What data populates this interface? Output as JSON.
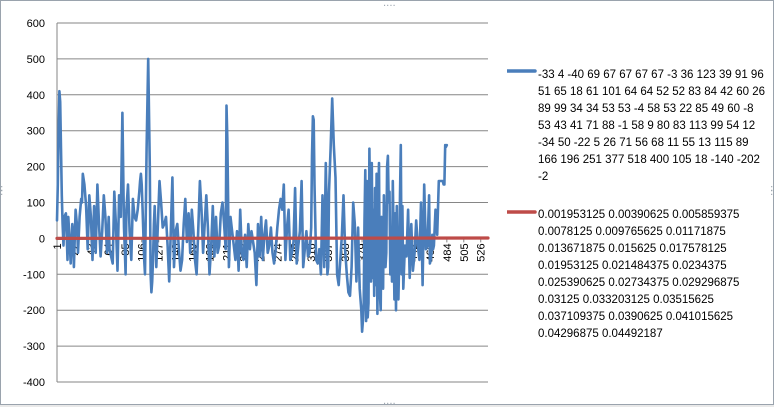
{
  "chart_data": {
    "type": "line",
    "title": "",
    "xlabel": "",
    "ylabel": "",
    "ylim": [
      -400,
      600
    ],
    "y_ticks": [
      "600",
      "500",
      "400",
      "300",
      "200",
      "100",
      "0",
      "-100",
      "-200",
      "-300",
      "-400"
    ],
    "x_range": [
      1,
      535
    ],
    "x_ticks": [
      "1",
      "22",
      "43",
      "64",
      "85",
      "106",
      "127",
      "148",
      "169",
      "190",
      "211",
      "232",
      "253",
      "274",
      "295",
      "316",
      "337",
      "358",
      "379",
      "400",
      "421",
      "442",
      "463",
      "484",
      "505",
      "526"
    ],
    "grid": "horizontal",
    "legend_position": "right",
    "series": [
      {
        "name": "-33 4 -40 69 67 67 67 67 -3 36 123 39 91 96 51 65 18 61 101 64 64 52 52 83 84 42 60 26 89 99 34 34 53 53 -4 58 53 22 85 49 60 -8 53 43 41 71 88 -1 58 9 80 83 113 99 54 12 -34 50 -22 5 26 71 56 68 11 55 13 115 89 166 196 251 377 518 400 105 18 -140 -202 -2",
        "color": "#4a7ebb",
        "x": [
          1,
          2,
          3,
          4,
          5,
          6,
          7,
          8,
          9,
          10,
          12,
          13,
          14,
          15,
          16,
          18,
          20,
          21,
          22,
          24,
          26,
          27,
          29,
          31,
          32,
          33,
          35,
          37,
          38,
          39,
          41,
          43,
          45,
          47,
          49,
          51,
          53,
          55,
          57,
          59,
          61,
          63,
          65,
          66,
          68,
          70,
          72,
          74,
          76,
          78,
          80,
          82,
          84,
          85,
          86,
          87,
          89,
          91,
          93,
          95,
          97,
          99,
          101,
          103,
          104,
          105,
          106,
          107,
          108,
          109,
          110,
          112,
          114,
          116,
          117,
          118,
          119,
          120,
          121,
          122,
          124,
          126,
          128,
          130,
          132,
          134,
          136,
          138,
          140,
          142,
          144,
          146,
          148,
          150,
          152,
          154,
          156,
          158,
          160,
          162,
          164,
          166,
          168,
          170,
          172,
          174,
          176,
          178,
          180,
          182,
          184,
          186,
          188,
          190,
          192,
          194,
          196,
          198,
          200,
          202,
          204,
          206,
          208,
          210,
          211,
          212,
          213,
          214,
          216,
          218,
          220,
          222,
          224,
          226,
          228,
          230,
          232,
          234,
          236,
          238,
          240,
          242,
          244,
          246,
          248,
          250,
          252,
          254,
          256,
          258,
          260,
          262,
          264,
          266,
          268,
          270,
          272,
          274,
          276,
          278,
          280,
          282,
          284,
          286,
          288,
          290,
          292,
          294,
          296,
          298,
          300,
          302,
          304,
          306,
          308,
          310,
          312,
          314,
          316,
          317,
          318,
          319,
          320,
          322,
          324,
          326,
          328,
          330,
          332,
          334,
          335,
          336,
          337,
          338,
          340,
          342,
          344,
          346,
          348,
          350,
          352,
          354,
          356,
          358,
          360,
          362,
          364,
          366,
          368,
          370,
          372,
          374,
          376,
          378,
          379,
          380,
          381,
          382,
          383,
          384,
          385,
          386,
          387,
          388,
          389,
          390,
          391,
          392,
          393,
          394,
          395,
          396,
          397,
          398,
          399,
          400,
          401,
          402,
          403,
          404,
          405,
          406,
          407,
          408,
          409,
          410,
          411,
          412,
          413,
          414,
          415,
          416,
          417,
          418,
          419,
          420,
          421,
          422,
          423,
          424,
          425,
          426,
          427,
          428,
          429,
          430,
          432,
          434,
          436,
          438,
          440,
          442,
          444,
          446,
          448,
          450,
          452,
          454,
          456,
          458,
          460,
          462,
          463,
          464,
          465,
          466,
          467,
          468,
          470,
          472,
          474,
          476,
          478,
          479,
          480,
          481,
          482,
          483,
          484
        ],
        "values": [
          50,
          150,
          300,
          410,
          380,
          250,
          120,
          40,
          -20,
          60,
          70,
          10,
          -60,
          60,
          20,
          -70,
          40,
          10,
          -80,
          80,
          30,
          -40,
          60,
          110,
          100,
          180,
          150,
          90,
          30,
          -30,
          120,
          60,
          -60,
          90,
          -40,
          150,
          40,
          -50,
          20,
          120,
          60,
          -40,
          60,
          -30,
          -50,
          -70,
          130,
          40,
          -90,
          120,
          60,
          350,
          30,
          -30,
          -100,
          80,
          150,
          20,
          -60,
          110,
          60,
          50,
          80,
          130,
          160,
          180,
          150,
          80,
          10,
          -60,
          -100,
          250,
          500,
          200,
          -100,
          -150,
          -120,
          -60,
          40,
          90,
          -80,
          40,
          160,
          100,
          30,
          40,
          60,
          -20,
          -120,
          20,
          170,
          -80,
          20,
          40,
          -30,
          -90,
          -60,
          40,
          110,
          -10,
          70,
          -40,
          80,
          20,
          -60,
          -100,
          20,
          160,
          80,
          -40,
          40,
          120,
          30,
          -100,
          -20,
          90,
          -50,
          60,
          -40,
          -20,
          70,
          100,
          40,
          -30,
          370,
          280,
          110,
          -80,
          60,
          20,
          -20,
          -60,
          20,
          -90,
          80,
          -40,
          -60,
          10,
          -80,
          40,
          -30,
          20,
          -10,
          -40,
          -130,
          40,
          -50,
          60,
          -60,
          10,
          50,
          -40,
          -20,
          30,
          -40,
          -70,
          -30,
          30,
          80,
          110,
          80,
          150,
          -60,
          30,
          80,
          -60,
          -40,
          -10,
          140,
          -70,
          -20,
          20,
          160,
          -80,
          -30,
          20,
          -50,
          -40,
          30,
          230,
          340,
          330,
          150,
          -60,
          -70,
          -30,
          -100,
          120,
          -80,
          210,
          90,
          -100,
          -80,
          130,
          250,
          390,
          260,
          170,
          -100,
          -130,
          -60,
          10,
          120,
          -30,
          -100,
          -150,
          -160,
          -80,
          100,
          40,
          -120,
          30,
          -140,
          -200,
          -260,
          -230,
          -180,
          50,
          190,
          -230,
          160,
          -220,
          -180,
          250,
          60,
          -120,
          210,
          -110,
          80,
          -160,
          140,
          -130,
          180,
          -210,
          100,
          210,
          -150,
          -200,
          60,
          -110,
          -140,
          120,
          20,
          -80,
          -40,
          200,
          230,
          100,
          130,
          -100,
          20,
          -120,
          160,
          10,
          -170,
          70,
          -200,
          90,
          -130,
          -170,
          -60,
          120,
          260,
          -100,
          90,
          -140,
          -20,
          -50,
          80,
          -110,
          40,
          -90,
          -40,
          50,
          -20,
          -60,
          100,
          -130,
          150,
          -30,
          -20,
          120,
          -70,
          -60,
          -40,
          10,
          -30,
          -20,
          80,
          10,
          160,
          160,
          160,
          160,
          150,
          150,
          260,
          255,
          260
        ]
      },
      {
        "name": "0.001953125 0.00390625 0.005859375 0.0078125 0.009765625 0.01171875 0.013671875 0.015625 0.017578125 0.01953125 0.021484375 0.0234375 0.025390625 0.02734375 0.029296875 0.03125 0.033203125 0.03515625 0.037109375 0.0390625 0.041015625 0.04296875 0.04492187",
        "color": "#be4b48",
        "x": [
          1,
          535
        ],
        "values": [
          0.002,
          1.045
        ]
      }
    ]
  }
}
